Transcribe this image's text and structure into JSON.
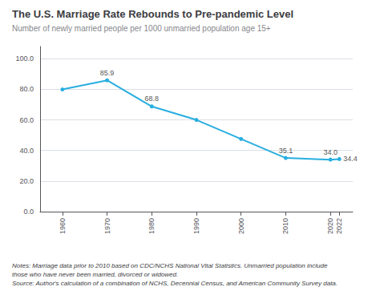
{
  "chart_data": {
    "type": "line",
    "title": "The U.S. Marriage Rate Rebounds to Pre-pandemic Level",
    "subtitle": "Number of newly married people per 1000 unmarried population age 15+",
    "notes": [
      "Notes: Marriage data prior to 2010 based on CDC/NCHS National Vital Statistics. Unmarried population include",
      "those who have never been married, divorced or widowed.",
      "Source: Author's calculation of a combination of NCHS, Decennial Census, and American Community Survey data."
    ],
    "x": [
      1960,
      1970,
      1980,
      1990,
      2000,
      2010,
      2020,
      2022
    ],
    "values": [
      79.9,
      85.9,
      68.8,
      60.0,
      47.5,
      35.1,
      34.0,
      34.4
    ],
    "color": "#29aee0",
    "marker": "circle",
    "annotations": [
      {
        "x": 1970,
        "y": 85.9,
        "label": "85.9"
      },
      {
        "x": 1980,
        "y": 68.8,
        "label": "68.8"
      },
      {
        "x": 2010,
        "y": 35.1,
        "label": "35.1"
      },
      {
        "x": 2020,
        "y": 34.0,
        "label": "34.0"
      },
      {
        "x": 2022,
        "y": 34.4,
        "label": "34.4"
      }
    ],
    "xlim": [
      1955,
      2025
    ],
    "xticks": [
      1960,
      1970,
      1980,
      1990,
      2000,
      2010,
      2020,
      2022
    ],
    "ylim": [
      0,
      108
    ],
    "yticks": [
      {
        "value": 0,
        "label": "0.0"
      },
      {
        "value": 20,
        "label": "20.0"
      },
      {
        "value": 40,
        "label": "40.0"
      },
      {
        "value": 60,
        "label": "60.0"
      },
      {
        "value": 80,
        "label": "80.0"
      },
      {
        "value": 100,
        "label": "100.0"
      }
    ],
    "grid": true
  }
}
